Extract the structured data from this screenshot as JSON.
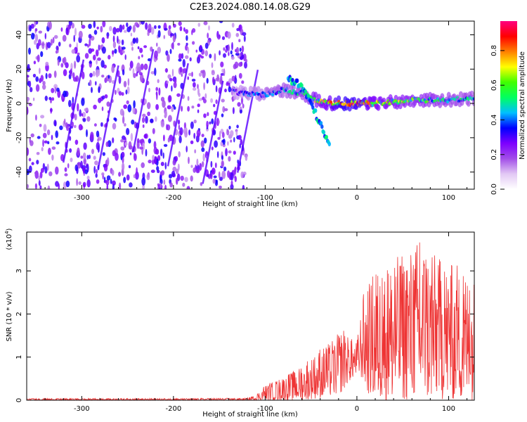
{
  "figure_title": "C2E3.2024.080.14.08.G29",
  "chart_data": [
    {
      "type": "heatmap",
      "xlabel": "Height of straight line (km)",
      "ylabel": "Frequency (Hz)",
      "xlim": [
        -360,
        128
      ],
      "ylim": [
        -50,
        48
      ],
      "xticks": [
        -300,
        -200,
        -100,
        0,
        100
      ],
      "xtick_labels": [
        "-300",
        "-200",
        "-100",
        "0",
        "100"
      ],
      "yticks": [
        -40,
        -20,
        0,
        20,
        40
      ],
      "ytick_labels": [
        "-40",
        "-20",
        "0",
        "20",
        "40"
      ],
      "noise_region_km": [
        -360,
        -120
      ],
      "signal_trace": {
        "x_km": [
          -135,
          -120,
          -100,
          -80,
          -60,
          -45,
          -30,
          -15,
          0,
          20,
          40,
          60,
          80,
          100,
          128
        ],
        "freq_hz": [
          7,
          6,
          5,
          8,
          6,
          2,
          0,
          0,
          0,
          0,
          1,
          2,
          2,
          2,
          3
        ],
        "amplitude": [
          0.35,
          0.4,
          0.45,
          0.5,
          0.55,
          0.7,
          0.8,
          0.95,
          0.9,
          0.75,
          0.7,
          0.65,
          0.6,
          0.55,
          0.5
        ]
      },
      "branch_trace": {
        "x_km": [
          -75,
          -60,
          -50,
          -40,
          -30
        ],
        "freq_hz": [
          15,
          10,
          0,
          -12,
          -25
        ]
      },
      "colorbar": {
        "label": "Normalized spectral amplitude",
        "range": [
          0,
          0.97
        ],
        "ticks": [
          0,
          0.2,
          0.4,
          0.6,
          0.8
        ],
        "tick_labels": [
          "0.0",
          "0.2",
          "0.4",
          "0.6",
          "0.8"
        ],
        "colors": [
          "#ffffff",
          "#e2c8f4",
          "#a24ee8",
          "#7d00ff",
          "#0000ff",
          "#00bfff",
          "#00ff60",
          "#40ff00",
          "#ffff00",
          "#ff8000",
          "#ff0000",
          "#ff0080"
        ]
      }
    },
    {
      "type": "line",
      "xlabel": "Height of straight line (km)",
      "ylabel": "SNR (10 * v/v)",
      "y_multiplier": "(x10",
      "y_multiplier_exp": "4",
      "y_multiplier_close": ")",
      "xlim": [
        -360,
        128
      ],
      "ylim": [
        0,
        3.9
      ],
      "xticks": [
        -300,
        -200,
        -100,
        0,
        100
      ],
      "xtick_labels": [
        "-300",
        "-200",
        "-100",
        "0",
        "100"
      ],
      "yticks": [
        0,
        1,
        2,
        3
      ],
      "ytick_labels": [
        "0",
        "1",
        "2",
        "3"
      ],
      "color": "#ee3333",
      "envelope": {
        "x_km": [
          -360,
          -200,
          -120,
          -110,
          -100,
          -80,
          -60,
          -40,
          -25,
          -15,
          -10,
          0,
          5,
          10,
          20,
          30,
          40,
          55,
          70,
          85,
          100,
          115,
          128
        ],
        "y_max": [
          0.04,
          0.04,
          0.05,
          0.12,
          0.35,
          0.55,
          0.8,
          1.2,
          1.4,
          1.75,
          1.5,
          1.35,
          2.2,
          2.8,
          3.0,
          3.2,
          3.3,
          3.5,
          3.85,
          3.4,
          3.2,
          3.1,
          2.9
        ],
        "y_min": [
          0.0,
          0.0,
          0.0,
          0.0,
          0.0,
          0.0,
          0.0,
          0.05,
          0.1,
          0.2,
          0.4,
          0.6,
          0.5,
          0.2,
          0.0,
          0.0,
          0.0,
          0.0,
          0.0,
          0.0,
          0.0,
          0.0,
          0.0
        ]
      }
    }
  ]
}
